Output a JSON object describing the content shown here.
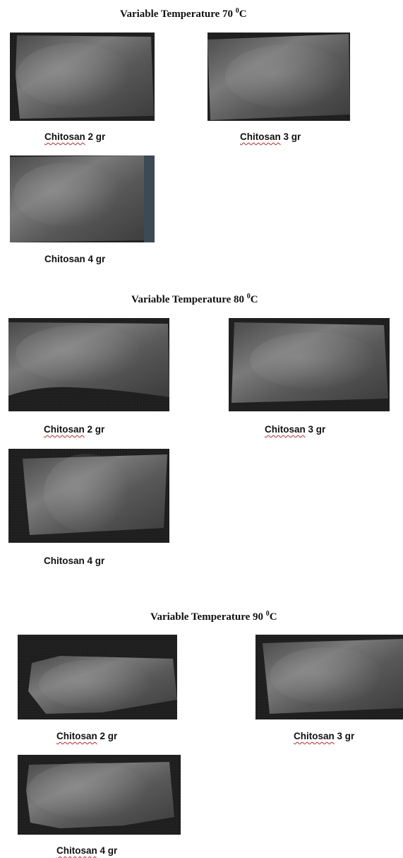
{
  "sections": [
    {
      "heading": {
        "text": "Variable Temperature 70 ",
        "sup": "0",
        "unit": "C"
      },
      "samples": [
        {
          "word": "Chitosan",
          "amount": " 2 gr"
        },
        {
          "word": "Chitosan",
          "amount": " 3 gr"
        },
        {
          "word": "Chitosan",
          "amount": " 4 gr"
        }
      ]
    },
    {
      "heading": {
        "text": "Variable Temperature 80 ",
        "sup": "0",
        "unit": "C"
      },
      "samples": [
        {
          "word": "Chitosan",
          "amount": " 2 gr"
        },
        {
          "word": "Chitosan",
          "amount": " 3 gr"
        },
        {
          "word": "Chitosan",
          "amount": " 4 gr"
        }
      ]
    },
    {
      "heading": {
        "text": "Variable Temperature 90 ",
        "sup": "0",
        "unit": "C"
      },
      "samples": [
        {
          "word": "Chitosan",
          "amount": " 2 gr"
        },
        {
          "word": "Chitosan",
          "amount": " 3 gr"
        },
        {
          "word": "Chitosan",
          "amount": " 4 gr"
        }
      ]
    }
  ],
  "colors": {
    "photo_background": "#1c1c1c",
    "film": "#6e6e6e",
    "spellcheck_underline": "#cc2222"
  }
}
